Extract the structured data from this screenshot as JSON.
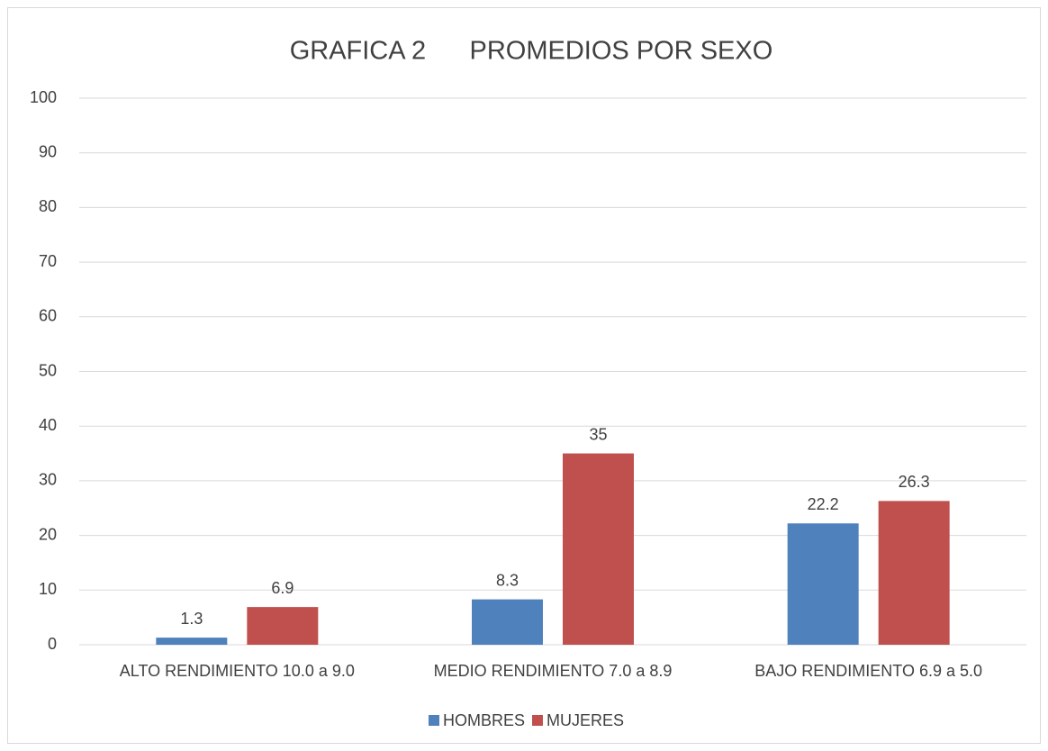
{
  "chart_data": {
    "type": "bar",
    "title": "GRAFICA 2      PROMEDIOS POR SEXO",
    "categories": [
      "ALTO RENDIMIENTO 10.0 a 9.0",
      "MEDIO RENDIMIENTO 7.0 a 8.9",
      "BAJO RENDIMIENTO 6.9 a 5.0"
    ],
    "series": [
      {
        "name": "HOMBRES",
        "color": "#4f81bd",
        "values": [
          1.3,
          8.3,
          22.2
        ]
      },
      {
        "name": "MUJERES",
        "color": "#c0504d",
        "values": [
          6.9,
          35,
          26.3
        ]
      }
    ],
    "ylim": [
      0,
      100
    ],
    "yticks": [
      0,
      10,
      20,
      30,
      40,
      50,
      60,
      70,
      80,
      90,
      100
    ],
    "grid": true,
    "legend": "bottom"
  }
}
